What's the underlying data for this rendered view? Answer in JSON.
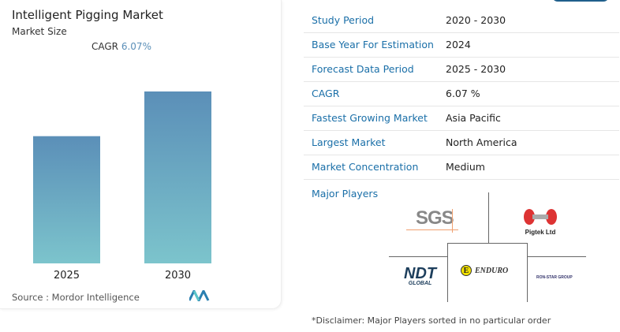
{
  "header": {
    "title": "Intelligent Pigging Market",
    "subtitle": "Market Size",
    "cagr_label": "CAGR",
    "cagr_value": "6.07%"
  },
  "chart_data": {
    "type": "bar",
    "categories": [
      "2025",
      "2030"
    ],
    "values": [
      74,
      100
    ],
    "title": "",
    "xlabel": "",
    "ylabel": "",
    "gradient": [
      "#5b8fb8",
      "#7cc4cc"
    ]
  },
  "source": "Source :  Mordor Intelligence",
  "facts": [
    {
      "k": "Study Period",
      "v": "2020 - 2030"
    },
    {
      "k": "Base Year For Estimation",
      "v": "2024"
    },
    {
      "k": "Forecast Data Period",
      "v": "2025 - 2030"
    },
    {
      "k": "CAGR",
      "v": "6.07 %"
    },
    {
      "k": "Fastest Growing Market",
      "v": "Asia Pacific"
    },
    {
      "k": "Largest Market",
      "v": "North America"
    },
    {
      "k": "Market Concentration",
      "v": "Medium"
    }
  ],
  "major_players_label": "Major Players",
  "players": [
    "SGS",
    "Pigtek Ltd",
    "NDT Global",
    "Enduro",
    "Ron-Star Group"
  ],
  "disclaimer": "*Disclaimer: Major Players sorted in no particular order"
}
